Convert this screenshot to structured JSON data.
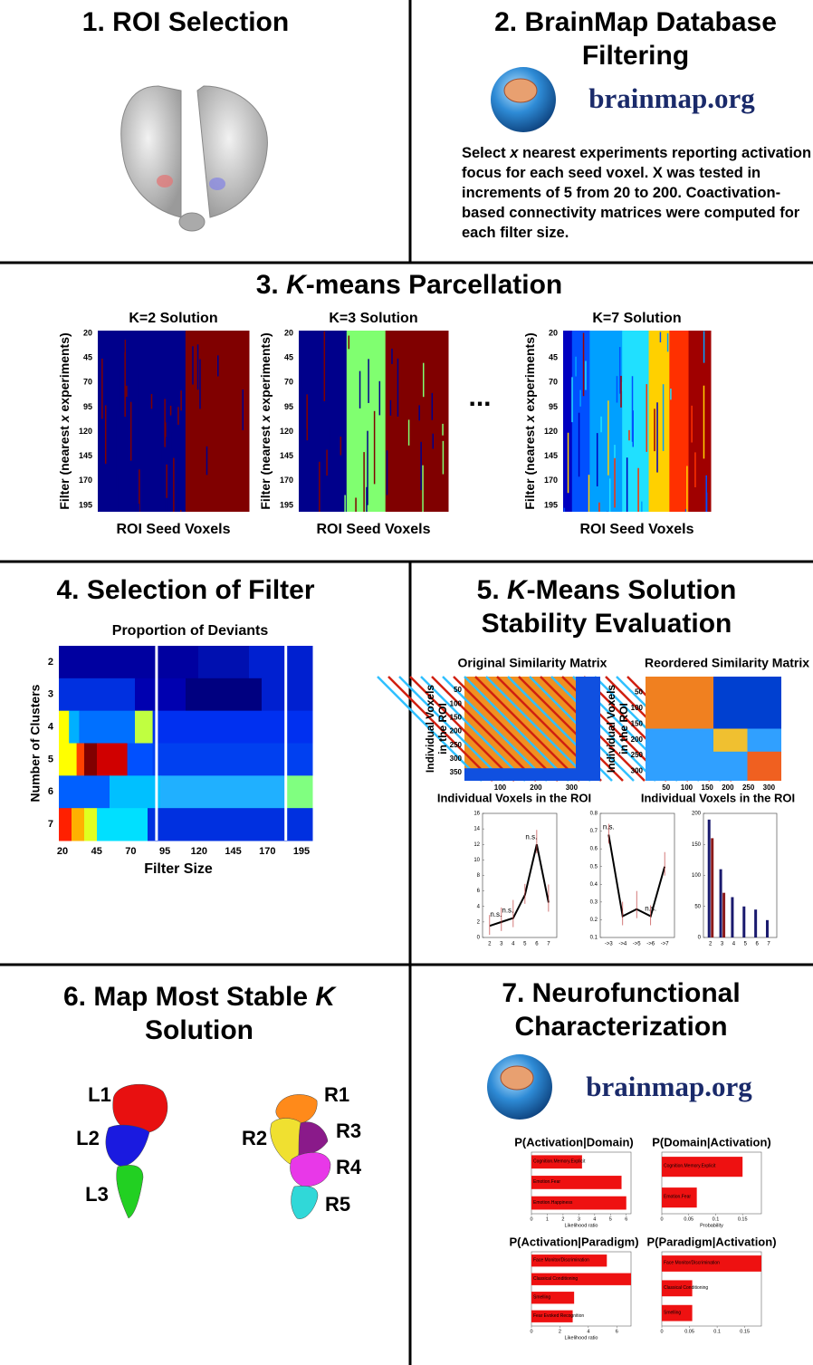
{
  "roi": {
    "title": "1. ROI Selection"
  },
  "filtering": {
    "title_lines": [
      "2. BrainMap Database",
      "Filtering"
    ],
    "logo": "brainmap.org",
    "text_parts": [
      "Select ",
      "x",
      " nearest experiments reporting activation focus for each seed voxel. X was tested in increments of 5 from 20 to 200. Coactivation-based connectivity matrices were computed for each filter size."
    ]
  },
  "parcellation": {
    "title_parts": [
      "3. ",
      "K",
      "-means Parcellation"
    ],
    "ellipsis": "...",
    "y_label_parts": [
      "Filter (nearest ",
      "x",
      " experiments)"
    ],
    "x_label": "ROI Seed Voxels",
    "yticks": [
      20,
      45,
      70,
      95,
      120,
      145,
      170,
      195
    ],
    "maps": [
      {
        "title": "K=2 Solution"
      },
      {
        "title": "K=3 Solution"
      },
      {
        "title": "K=7 Solution"
      }
    ]
  },
  "filter": {
    "title": "4. Selection of Filter",
    "subtitle": "Proportion of Deviants",
    "y_label": "Number of Clusters",
    "x_label": "Filter Size",
    "yticks": [
      2,
      3,
      4,
      5,
      6,
      7
    ],
    "xticks": [
      20,
      45,
      70,
      95,
      120,
      145,
      170,
      195
    ]
  },
  "stability": {
    "title_parts": [
      "5. ",
      "K",
      "-Means Solution"
    ],
    "title_line2": "Stability Evaluation",
    "y_label_lines": [
      "Individual Voxels",
      "in the ROI"
    ],
    "x_label": "Individual Voxels in the ROI",
    "matrices": [
      {
        "title": "Original Similarity Matrix",
        "lim": [
          0,
          380
        ],
        "yticks": [
          50,
          100,
          150,
          200,
          250,
          300,
          350
        ],
        "xticks": [
          100,
          200,
          300
        ]
      },
      {
        "title": "Reordered Similarity Matrix",
        "lim": [
          0,
          330
        ],
        "yticks": [
          50,
          100,
          150,
          200,
          250,
          300
        ],
        "xticks": [
          50,
          100,
          150,
          200,
          250,
          300
        ]
      }
    ],
    "charts": [
      {
        "type": "line",
        "ylim": [
          0,
          16
        ],
        "yticks": [
          0,
          2,
          4,
          6,
          8,
          10,
          12,
          14,
          16
        ],
        "categories": [
          2,
          3,
          4,
          5,
          6,
          7
        ],
        "values": [
          1.5,
          2,
          2.5,
          5.5,
          12,
          4.5
        ],
        "annotations": [
          "n.s.",
          "n.s.",
          "n.s."
        ]
      },
      {
        "type": "line",
        "ylim": [
          0.1,
          0.8
        ],
        "yticks": [
          0.1,
          0.2,
          0.3,
          0.4,
          0.5,
          0.6,
          0.7,
          0.8
        ],
        "categories": [
          "->3",
          "->4",
          "->5",
          "->6",
          "->7"
        ],
        "values": [
          0.68,
          0.22,
          0.26,
          0.22,
          0.5
        ],
        "annotations": [
          "n.s.",
          "n.s."
        ]
      },
      {
        "type": "bar",
        "ylim": [
          0,
          200
        ],
        "yticks": [
          0,
          50,
          100,
          150,
          200
        ],
        "categories": [
          2,
          3,
          4,
          5,
          6,
          7
        ],
        "series": [
          {
            "color": "#1a1a6e",
            "values": [
              190,
              110,
              65,
              50,
              45,
              28
            ]
          },
          {
            "color": "#8b1a1a",
            "values": [
              160,
              72,
              null,
              null,
              null,
              null
            ]
          }
        ]
      }
    ]
  },
  "map": {
    "title_parts": [
      "6. Map Most Stable ",
      "K"
    ],
    "title_line2": "Solution",
    "left_labels": [
      "L1",
      "L2",
      "L3"
    ],
    "right_labels": [
      "R1",
      "R2",
      "R3",
      "R4",
      "R5"
    ]
  },
  "neuro": {
    "title_lines": [
      "7. Neurofunctional",
      "Characterization"
    ],
    "logo": "brainmap.org",
    "charts": [
      {
        "title": "P(Activation|Domain)",
        "categories": [
          "Cognition.Memory.Explicit",
          "Emotion.Fear",
          "Emotion.Happiness"
        ],
        "values": [
          3.2,
          5.7,
          6.0
        ],
        "xlim": [
          0,
          6.3
        ],
        "xticks": [
          0,
          1,
          2,
          3,
          4,
          5,
          6
        ],
        "x_label": "Likelihood ratio"
      },
      {
        "title": "P(Domain|Activation)",
        "categories": [
          "Cognition.Memory.Explicit",
          "Emotion.Fear"
        ],
        "values": [
          0.15,
          0.065
        ],
        "xlim": [
          0,
          0.185
        ],
        "xticks": [
          0,
          0.05,
          0.1,
          0.15
        ],
        "x_label": "Probability"
      },
      {
        "title": "P(Activation|Paradigm)",
        "categories": [
          "Face Monitor/Discrimination",
          "Classical Conditioning",
          "Smelling",
          "Fear Evoked Recognition"
        ],
        "values": [
          5.3,
          7.0,
          3.0,
          2.9
        ],
        "xlim": [
          0,
          7.0
        ],
        "xticks": [
          0,
          2,
          4,
          6
        ],
        "x_label": "Likelihood ratio"
      },
      {
        "title": "P(Paradigm|Activation)",
        "categories": [
          "Face Monitor/Discrimination",
          "Classical Conditioning",
          "Smelling"
        ],
        "values": [
          0.18,
          0.055,
          0.055
        ],
        "xlim": [
          0,
          0.18
        ],
        "xticks": [
          0,
          0.05,
          0.1,
          0.15
        ]
      }
    ]
  }
}
